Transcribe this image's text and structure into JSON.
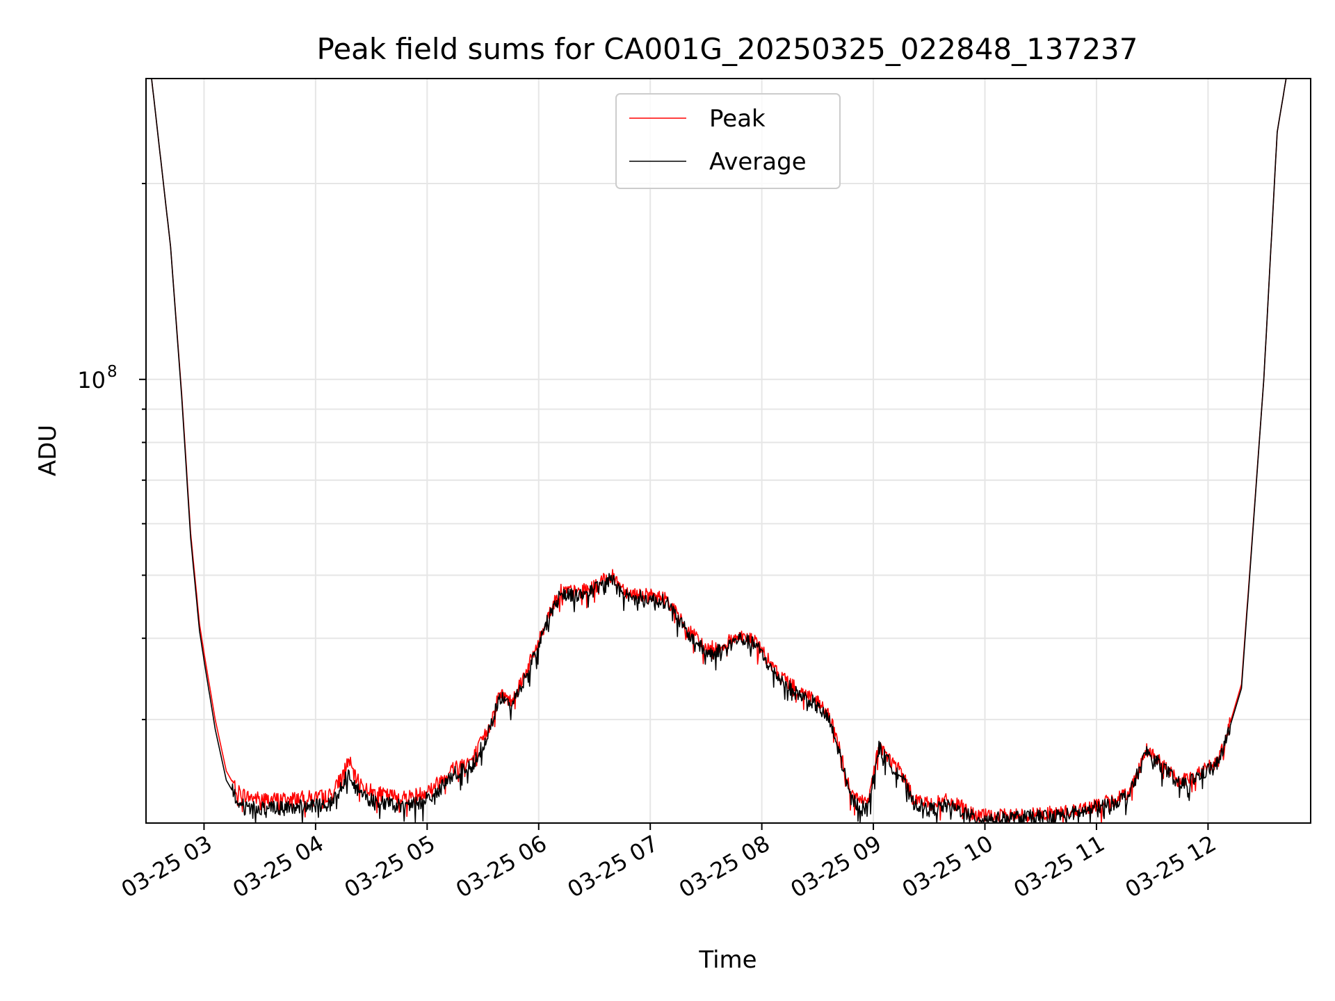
{
  "chart_data": {
    "type": "line",
    "title": "Peak field sums for CA001G_20250325_022848_137237",
    "xlabel": "Time",
    "ylabel": "ADU",
    "yscale": "log",
    "grid": true,
    "legend_position": "upper center",
    "x_tick_labels": [
      "03-25 03",
      "03-25 04",
      "03-25 05",
      "03-25 06",
      "03-25 07",
      "03-25 08",
      "03-25 09",
      "03-25 10",
      "03-25 11",
      "03-25 12"
    ],
    "y_tick_label": {
      "base": "10",
      "exponent": "8"
    },
    "x_unit": "hours after 03-25 00:00",
    "xlim": [
      2.48,
      12.92
    ],
    "ylim": [
      20800000.0,
      290000000.0
    ],
    "series": [
      {
        "name": "Peak",
        "color": "#ff0000",
        "x": [
          2.53,
          2.7,
          2.8,
          2.88,
          2.96,
          3.0,
          3.1,
          3.2,
          3.3,
          3.4,
          3.6,
          3.8,
          4.0,
          4.15,
          4.3,
          4.35,
          4.45,
          4.6,
          4.8,
          4.95,
          5.1,
          5.25,
          5.4,
          5.55,
          5.65,
          5.75,
          5.9,
          6.0,
          6.1,
          6.2,
          6.35,
          6.5,
          6.65,
          6.8,
          7.0,
          7.15,
          7.3,
          7.5,
          7.65,
          7.8,
          7.95,
          8.1,
          8.3,
          8.45,
          8.6,
          8.7,
          8.8,
          8.95,
          9.05,
          9.15,
          9.25,
          9.35,
          9.5,
          9.65,
          9.8,
          9.9,
          10.1,
          10.3,
          10.5,
          10.7,
          10.9,
          11.0,
          11.15,
          11.3,
          11.45,
          11.6,
          11.75,
          11.85,
          11.95,
          12.1,
          12.3,
          12.5,
          12.62,
          12.7
        ],
        "values": [
          290000000.0,
          160000000.0,
          95000000.0,
          58000000.0,
          42000000.0,
          38000000.0,
          30000000.0,
          25000000.0,
          23300000.0,
          22800000.0,
          22600000.0,
          22700000.0,
          22800000.0,
          23000000.0,
          26000000.0,
          24500000.0,
          23500000.0,
          23000000.0,
          22800000.0,
          23100000.0,
          24000000.0,
          25500000.0,
          26000000.0,
          29000000.0,
          33000000.0,
          32000000.0,
          36000000.0,
          39500000.0,
          44000000.0,
          47500000.0,
          47000000.0,
          48000000.0,
          50000000.0,
          47000000.0,
          46500000.0,
          46000000.0,
          42000000.0,
          38500000.0,
          39000000.0,
          40500000.0,
          39500000.0,
          36000000.0,
          33500000.0,
          32500000.0,
          30500000.0,
          27000000.0,
          23000000.0,
          22200000.0,
          27500000.0,
          26000000.0,
          25000000.0,
          22800000.0,
          22200000.0,
          22500000.0,
          22000000.0,
          21400000.0,
          21300000.0,
          21400000.0,
          21500000.0,
          21600000.0,
          21900000.0,
          22200000.0,
          22500000.0,
          23300000.0,
          27000000.0,
          25500000.0,
          24000000.0,
          24500000.0,
          25000000.0,
          26000000.0,
          34000000.0,
          100000000.0,
          240000000.0,
          290000000.0
        ]
      },
      {
        "name": "Average",
        "color": "#000000",
        "x": [
          2.53,
          2.7,
          2.8,
          2.88,
          2.96,
          3.0,
          3.1,
          3.2,
          3.3,
          3.4,
          3.6,
          3.8,
          4.0,
          4.15,
          4.3,
          4.35,
          4.45,
          4.6,
          4.8,
          4.95,
          5.1,
          5.25,
          5.4,
          5.55,
          5.65,
          5.75,
          5.9,
          6.0,
          6.1,
          6.2,
          6.35,
          6.5,
          6.65,
          6.8,
          7.0,
          7.15,
          7.3,
          7.5,
          7.65,
          7.8,
          7.95,
          8.1,
          8.3,
          8.45,
          8.6,
          8.7,
          8.8,
          8.95,
          9.05,
          9.15,
          9.25,
          9.35,
          9.5,
          9.65,
          9.8,
          9.9,
          10.1,
          10.3,
          10.5,
          10.7,
          10.9,
          11.0,
          11.15,
          11.3,
          11.45,
          11.6,
          11.75,
          11.85,
          11.95,
          12.1,
          12.3,
          12.5,
          12.62,
          12.7
        ],
        "values": [
          290000000.0,
          160000000.0,
          94000000.0,
          57000000.0,
          41000000.0,
          37000000.0,
          29000000.0,
          24200000.0,
          22600000.0,
          22000000.0,
          21900000.0,
          22000000.0,
          22100000.0,
          22300000.0,
          25000000.0,
          23700000.0,
          22700000.0,
          22300000.0,
          22100000.0,
          22400000.0,
          23300000.0,
          24800000.0,
          25400000.0,
          28500000.0,
          32500000.0,
          31500000.0,
          35500000.0,
          39000000.0,
          43500000.0,
          47000000.0,
          46500000.0,
          47500000.0,
          49500000.0,
          46500000.0,
          46000000.0,
          45500000.0,
          41500000.0,
          38000000.0,
          38500000.0,
          40000000.0,
          39000000.0,
          35500000.0,
          33000000.0,
          32000000.0,
          30000000.0,
          26500000.0,
          22600000.0,
          21800000.0,
          27200000.0,
          25600000.0,
          24600000.0,
          22400000.0,
          21800000.0,
          22100000.0,
          21700000.0,
          21200000.0,
          21100000.0,
          21200000.0,
          21300000.0,
          21400000.0,
          21700000.0,
          22000000.0,
          22300000.0,
          23100000.0,
          26800000.0,
          25300000.0,
          23800000.0,
          24200000.0,
          24800000.0,
          25800000.0,
          33500000.0,
          100000000.0,
          240000000.0,
          290000000.0
        ]
      }
    ]
  }
}
